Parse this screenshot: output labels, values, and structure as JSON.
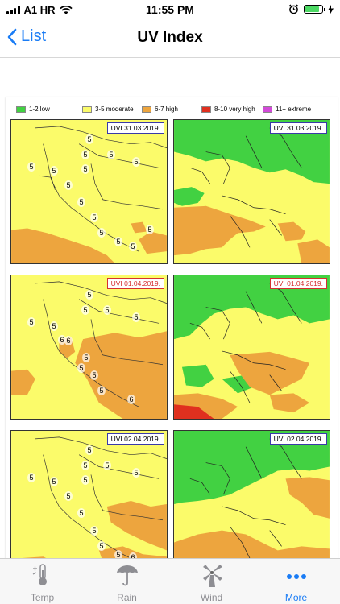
{
  "status_bar": {
    "carrier": "A1 HR",
    "time": "11:55 PM"
  },
  "nav": {
    "back_label": "List",
    "title": "UV Index"
  },
  "legend": [
    {
      "label": "1-2 low",
      "color": "#42d142"
    },
    {
      "label": "3-5 moderate",
      "color": "#fbfb6a"
    },
    {
      "label": "6-7 high",
      "color": "#eda53e"
    },
    {
      "label": "8-10 very high",
      "color": "#e0301f"
    },
    {
      "label": "11+ extreme",
      "color": "#d24bd8"
    }
  ],
  "maps": [
    {
      "label": "UVI  31.03.2019.",
      "label_color": "blue",
      "numbers": [
        "5",
        "5",
        "5",
        "5",
        "5",
        "5",
        "5",
        "5",
        "5",
        "5",
        "5",
        "5",
        "5",
        "5"
      ]
    },
    {
      "label": "UVI  31.03.2019.",
      "label_color": "blue"
    },
    {
      "label": "UVI  01.04.2019.",
      "label_color": "red",
      "numbers": [
        "5",
        "5",
        "5",
        "5",
        "5",
        "5",
        "6",
        "5",
        "5",
        "6",
        "5",
        "5",
        "6"
      ]
    },
    {
      "label": "UVI  01.04.2019.",
      "label_color": "red"
    },
    {
      "label": "UVI  02.04.2019.",
      "label_color": "blue",
      "numbers": [
        "5",
        "5",
        "5",
        "5",
        "5",
        "5",
        "5",
        "5",
        "5",
        "5",
        "5",
        "5",
        "6"
      ]
    },
    {
      "label": "UVI  02.04.2019.",
      "label_color": "blue"
    }
  ],
  "tabs": [
    {
      "label": "Temp",
      "icon": "thermometer-icon"
    },
    {
      "label": "Rain",
      "icon": "umbrella-icon"
    },
    {
      "label": "Wind",
      "icon": "windmill-icon"
    },
    {
      "label": "More",
      "icon": "ellipsis-icon",
      "active": true
    }
  ]
}
